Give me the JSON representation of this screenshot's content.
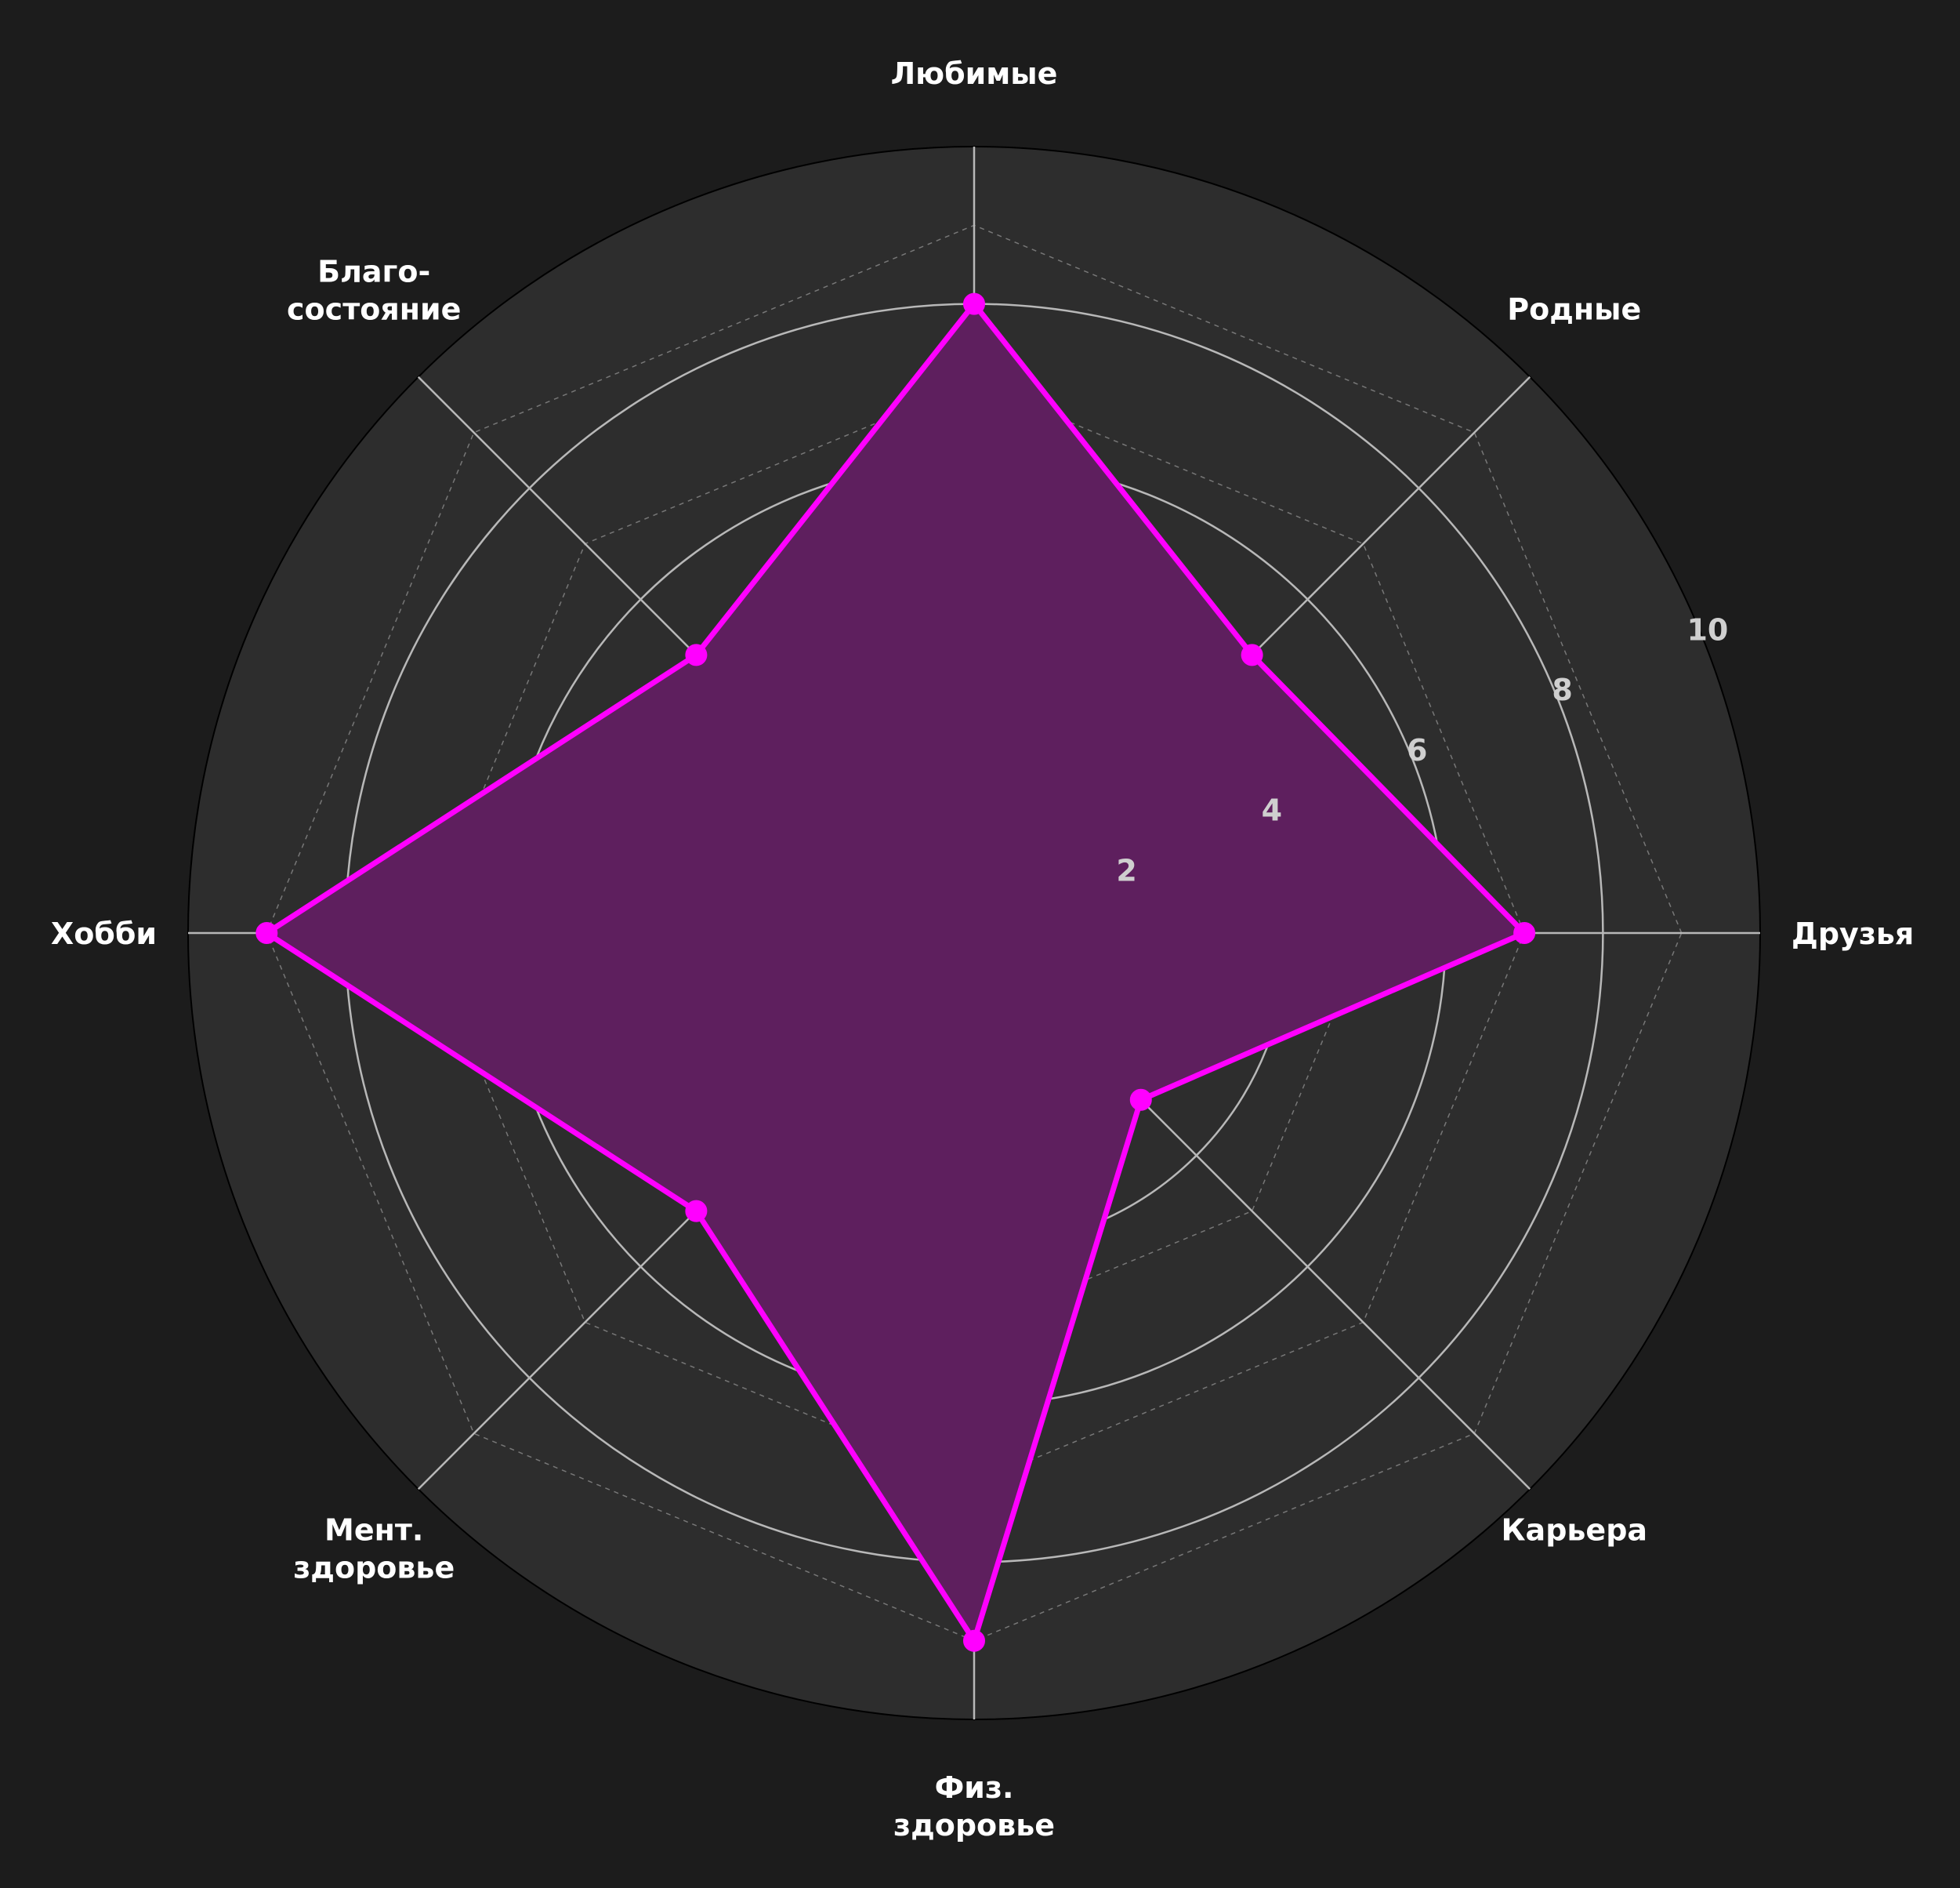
{
  "chart_data": {
    "type": "radar",
    "title": "",
    "categories": [
      [
        "Друзья"
      ],
      [
        "Родные"
      ],
      [
        "Любимые"
      ],
      [
        "Благо-",
        "состояние"
      ],
      [
        "Хобби"
      ],
      [
        "Мент.",
        "здоровье"
      ],
      [
        "Физ.",
        "здоровье"
      ],
      [
        "Карьера"
      ]
    ],
    "series": [
      {
        "values": [
          7,
          5,
          8,
          5,
          9,
          5,
          9,
          3
        ],
        "color": "#ff00ff",
        "fill_color": "#5e1f5e"
      }
    ],
    "rlim": [
      0,
      10
    ],
    "rticks": [
      2,
      4,
      6,
      8,
      10
    ],
    "rtick_labels": [
      "2",
      "4",
      "6",
      "8",
      "10"
    ],
    "grid": true,
    "colors": {
      "figure_background": "#1c1c1c",
      "plot_background": "#2d2d2d",
      "grid": "#b8b8b8",
      "label": "#ffffff",
      "tick_label": "#cfcfcf"
    }
  }
}
